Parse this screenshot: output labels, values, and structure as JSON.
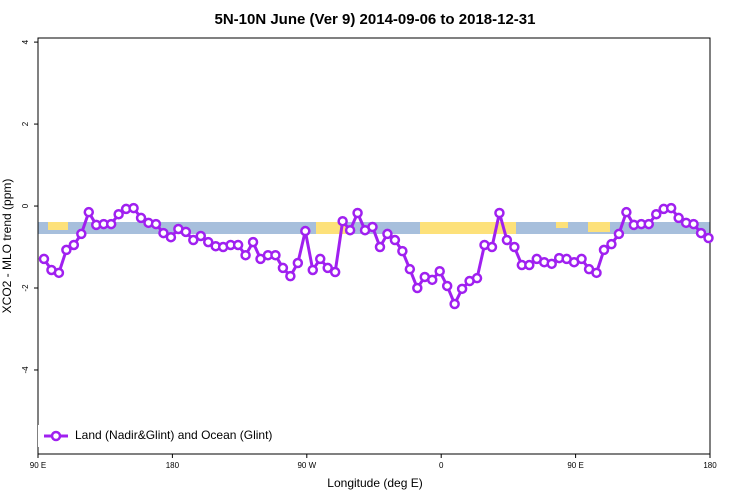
{
  "chart_data": {
    "type": "line",
    "title": "5N-10N June (Ver 9)   2014-09-06 to 2018-12-31",
    "xlabel": "Longitude (deg E)",
    "ylabel": "XCO2 - MLO trend (ppm)",
    "xlim": [
      90,
      540
    ],
    "ylim": [
      -6.05,
      4.1
    ],
    "xticks": [
      {
        "value": 90,
        "label": "90 E"
      },
      {
        "value": 180,
        "label": "180"
      },
      {
        "value": 270,
        "label": "90 W"
      },
      {
        "value": 360,
        "label": "0"
      },
      {
        "value": 450,
        "label": "90 E"
      },
      {
        "value": 540,
        "label": "180"
      }
    ],
    "yticks": [
      4,
      2,
      0,
      -2,
      -4
    ],
    "legend": "bottom-left",
    "x": [
      94,
      99,
      104,
      109,
      114,
      119,
      124,
      129,
      134,
      139,
      144,
      149,
      154,
      159,
      164,
      169,
      174,
      179,
      184,
      189,
      194,
      199,
      204,
      209,
      214,
      219,
      224,
      229,
      234,
      239,
      244,
      249,
      254,
      259,
      264,
      269,
      274,
      279,
      284,
      289,
      294,
      299,
      304,
      309,
      314,
      319,
      324,
      329,
      334,
      339,
      344,
      349,
      354,
      359,
      364,
      369,
      374,
      379,
      384,
      389,
      394,
      399,
      404,
      409,
      414,
      419,
      424,
      429,
      434,
      439,
      444,
      449,
      454,
      459,
      464,
      469,
      474,
      479,
      484,
      489,
      494,
      499,
      504,
      509,
      514,
      519,
      524,
      529,
      534,
      539
    ],
    "series": [
      {
        "name": "Land (Nadir&Glint) and Ocean (Glint)",
        "color": "#a020f0",
        "values": [
          -1.29,
          -1.56,
          -1.63,
          -1.07,
          -0.95,
          -0.68,
          -0.15,
          -0.46,
          -0.44,
          -0.44,
          -0.2,
          -0.07,
          -0.05,
          -0.29,
          -0.41,
          -0.44,
          -0.66,
          -0.76,
          -0.56,
          -0.63,
          -0.83,
          -0.73,
          -0.88,
          -0.98,
          -1.0,
          -0.95,
          -0.95,
          -1.2,
          -0.88,
          -1.29,
          -1.2,
          -1.2,
          -1.51,
          -1.71,
          -1.39,
          -0.61,
          -1.56,
          -1.29,
          -1.51,
          -1.61,
          -0.37,
          -0.59,
          -0.17,
          -0.59,
          -0.51,
          -1.0,
          -0.68,
          -0.83,
          -1.1,
          -1.54,
          -2.0,
          -1.73,
          -1.8,
          -1.59,
          -1.95,
          -2.39,
          -2.02,
          -1.83,
          -1.76,
          -0.95,
          -1.0,
          -0.17,
          -0.83,
          -1.0,
          -1.44,
          -1.44,
          -1.29,
          -1.37,
          -1.41,
          -1.27,
          -1.29,
          -1.37,
          -1.29,
          -1.54,
          -1.63,
          -1.07,
          -0.93,
          -0.68,
          -0.15,
          -0.46,
          -0.44,
          -0.44,
          -0.2,
          -0.07,
          -0.05,
          -0.29,
          -0.41,
          -0.44,
          -0.66,
          -0.78
        ]
      }
    ]
  }
}
